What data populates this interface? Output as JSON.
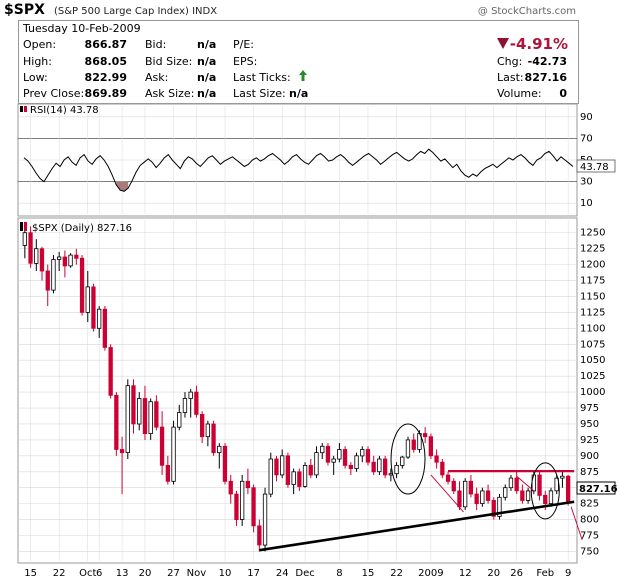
{
  "header": {
    "symbol": "$SPX",
    "name": "(S&P 500 Large Cap Index) INDX",
    "brand": "@ StockCharts.com"
  },
  "quote": {
    "date": "Tuesday 10-Feb-2009",
    "open_label": "Open:",
    "open": "866.87",
    "high_label": "High:",
    "high": "868.05",
    "low_label": "Low:",
    "low": "822.99",
    "prev_label": "Prev Close:",
    "prev": "869.89",
    "bid_label": "Bid:",
    "bid": "n/a",
    "bidsize_label": "Bid Size:",
    "bidsize": "n/a",
    "ask_label": "Ask:",
    "ask": "n/a",
    "asksize_label": "Ask Size:",
    "asksize": "n/a",
    "pe_label": "P/E:",
    "eps_label": "EPS:",
    "lastticks_label": "Last Ticks:",
    "lastsize_label": "Last Size:",
    "lastsize": "n/a",
    "pct_change": "-4.91%",
    "chg_label": "Chg:",
    "chg": "-42.73",
    "last_label": "Last:",
    "last": "827.16",
    "volume_label": "Volume:",
    "volume": "0"
  },
  "chart_data": [
    {
      "type": "line",
      "title": "RSI(14) 43.78",
      "current": 43.78,
      "current_label": "43.78",
      "ylim": [
        0,
        100
      ],
      "yticks": [
        90,
        70,
        50,
        30,
        10
      ],
      "ytick_labels": [
        "90",
        "70",
        "50",
        "30",
        "10"
      ],
      "overbought": 70,
      "oversold": 30,
      "values": [
        52,
        49,
        44,
        38,
        33,
        30,
        36,
        42,
        47,
        44,
        50,
        53,
        48,
        45,
        52,
        55,
        49,
        46,
        51,
        54,
        50,
        44,
        36,
        27,
        22,
        21,
        24,
        31,
        39,
        45,
        48,
        51,
        48,
        43,
        47,
        52,
        55,
        50,
        46,
        42,
        49,
        53,
        51,
        47,
        44,
        48,
        52,
        54,
        50,
        46,
        49,
        51,
        53,
        50,
        47,
        44,
        46,
        50,
        52,
        49,
        51,
        54,
        56,
        53,
        50,
        46,
        49,
        53,
        55,
        51,
        48,
        46,
        50,
        54,
        56,
        53,
        49,
        50,
        53,
        55,
        52,
        48,
        45,
        48,
        51,
        54,
        56,
        53,
        50,
        46,
        49,
        52,
        55,
        57,
        54,
        51,
        49,
        51,
        55,
        58,
        56,
        60,
        57,
        53,
        49,
        51,
        47,
        43,
        46,
        40,
        36,
        34,
        37,
        35,
        39,
        42,
        44,
        46,
        43,
        46,
        49,
        52,
        50,
        53,
        55,
        52,
        48,
        45,
        50,
        52,
        56,
        58,
        54,
        49,
        53,
        50,
        47,
        44
      ]
    },
    {
      "type": "candlestick",
      "title": "$SPX (Daily) 827.16",
      "last": 827.16,
      "last_label": "827.16",
      "ylim": [
        735,
        1270
      ],
      "yticks": [
        1250,
        1225,
        1200,
        1175,
        1150,
        1125,
        1100,
        1075,
        1050,
        1025,
        1000,
        975,
        950,
        925,
        900,
        875,
        850,
        825,
        800,
        775,
        750
      ],
      "ytick_labels": [
        "1250",
        "1225",
        "1200",
        "1175",
        "1150",
        "1125",
        "1100",
        "1075",
        "1050",
        "1025",
        "1000",
        "975",
        "950",
        "925",
        "900",
        "875",
        "850",
        "825",
        "800",
        "775",
        "750"
      ],
      "xtick_labels": [
        "15",
        "22",
        "Oct",
        "6",
        "13",
        "20",
        "27",
        "Nov",
        "10",
        "17",
        "24",
        "Dec",
        "8",
        "15",
        "22",
        "2009",
        "12",
        "20",
        "26",
        "Feb",
        "9"
      ],
      "xtick_index": [
        1,
        6,
        11,
        13,
        17,
        21,
        26,
        30,
        35,
        40,
        45,
        49,
        55,
        60,
        65,
        71,
        77,
        82,
        86,
        91,
        95
      ],
      "candles": [
        [
          1230,
          1255,
          1210,
          1250
        ],
        [
          1250,
          1260,
          1195,
          1202
        ],
        [
          1202,
          1240,
          1190,
          1225
        ],
        [
          1225,
          1228,
          1175,
          1190
        ],
        [
          1190,
          1200,
          1135,
          1160
        ],
        [
          1160,
          1215,
          1155,
          1208
        ],
        [
          1208,
          1220,
          1190,
          1212
        ],
        [
          1212,
          1222,
          1180,
          1198
        ],
        [
          1198,
          1218,
          1195,
          1215
        ],
        [
          1215,
          1225,
          1200,
          1210
        ],
        [
          1210,
          1215,
          1120,
          1125
        ],
        [
          1125,
          1190,
          1110,
          1165
        ],
        [
          1165,
          1170,
          1095,
          1100
        ],
        [
          1100,
          1135,
          1085,
          1130
        ],
        [
          1130,
          1135,
          1065,
          1070
        ],
        [
          1070,
          1075,
          990,
          995
        ],
        [
          995,
          1000,
          900,
          910
        ],
        [
          910,
          930,
          840,
          905
        ],
        [
          905,
          1020,
          895,
          1010
        ],
        [
          1010,
          1020,
          935,
          950
        ],
        [
          950,
          1000,
          940,
          990
        ],
        [
          990,
          1010,
          925,
          935
        ],
        [
          935,
          990,
          925,
          985
        ],
        [
          985,
          995,
          940,
          945
        ],
        [
          945,
          970,
          870,
          885
        ],
        [
          885,
          900,
          855,
          860
        ],
        [
          860,
          955,
          855,
          945
        ],
        [
          945,
          980,
          940,
          968
        ],
        [
          968,
          1000,
          960,
          990
        ],
        [
          990,
          1005,
          960,
          1000
        ],
        [
          1000,
          1010,
          960,
          965
        ],
        [
          965,
          970,
          920,
          930
        ],
        [
          930,
          955,
          915,
          950
        ],
        [
          950,
          955,
          900,
          905
        ],
        [
          905,
          920,
          880,
          915
        ],
        [
          915,
          920,
          855,
          860
        ],
        [
          860,
          870,
          825,
          840
        ],
        [
          840,
          845,
          790,
          800
        ],
        [
          800,
          870,
          790,
          860
        ],
        [
          860,
          880,
          840,
          850
        ],
        [
          850,
          855,
          780,
          790
        ],
        [
          790,
          800,
          750,
          760
        ],
        [
          760,
          850,
          750,
          840
        ],
        [
          840,
          905,
          835,
          895
        ],
        [
          895,
          900,
          860,
          870
        ],
        [
          870,
          910,
          865,
          900
        ],
        [
          900,
          905,
          850,
          855
        ],
        [
          855,
          880,
          840,
          875
        ],
        [
          875,
          880,
          845,
          852
        ],
        [
          852,
          890,
          850,
          885
        ],
        [
          885,
          895,
          865,
          870
        ],
        [
          870,
          915,
          865,
          905
        ],
        [
          905,
          920,
          895,
          915
        ],
        [
          915,
          920,
          885,
          890
        ],
        [
          890,
          900,
          870,
          895
        ],
        [
          895,
          920,
          890,
          910
        ],
        [
          910,
          915,
          880,
          885
        ],
        [
          885,
          890,
          870,
          880
        ],
        [
          880,
          905,
          875,
          900
        ],
        [
          900,
          915,
          890,
          910
        ],
        [
          910,
          915,
          885,
          890
        ],
        [
          890,
          900,
          870,
          875
        ],
        [
          875,
          900,
          870,
          895
        ],
        [
          895,
          900,
          865,
          870
        ],
        [
          870,
          880,
          860,
          872
        ],
        [
          872,
          890,
          865,
          885
        ],
        [
          885,
          900,
          880,
          898
        ],
        [
          898,
          930,
          895,
          925
        ],
        [
          925,
          935,
          905,
          910
        ],
        [
          910,
          940,
          905,
          935
        ],
        [
          935,
          945,
          920,
          930
        ],
        [
          930,
          935,
          895,
          900
        ],
        [
          900,
          910,
          880,
          890
        ],
        [
          890,
          895,
          865,
          870
        ],
        [
          870,
          875,
          855,
          860
        ],
        [
          860,
          865,
          840,
          845
        ],
        [
          845,
          860,
          815,
          820
        ],
        [
          820,
          865,
          815,
          860
        ],
        [
          860,
          870,
          835,
          840
        ],
        [
          840,
          850,
          815,
          825
        ],
        [
          825,
          850,
          820,
          845
        ],
        [
          845,
          855,
          825,
          830
        ],
        [
          830,
          835,
          800,
          805
        ],
        [
          805,
          840,
          800,
          835
        ],
        [
          835,
          855,
          830,
          850
        ],
        [
          850,
          870,
          845,
          865
        ],
        [
          865,
          875,
          840,
          845
        ],
        [
          845,
          855,
          825,
          830
        ],
        [
          830,
          850,
          825,
          845
        ],
        [
          845,
          875,
          840,
          870
        ],
        [
          870,
          875,
          830,
          838
        ],
        [
          838,
          845,
          815,
          825
        ],
        [
          825,
          850,
          820,
          845
        ],
        [
          845,
          870,
          840,
          865
        ],
        [
          865,
          875,
          850,
          868
        ],
        [
          868,
          870,
          822,
          827
        ]
      ],
      "annotations": {
        "support_trendline": "black",
        "resistance_line": "red",
        "ovals": 2,
        "direction_arrows": 3
      }
    }
  ],
  "colors": {
    "up": "#ffffff",
    "down": "#cc0033",
    "outline": "#000000",
    "rsi_line": "#000000",
    "rsi_oversold_fill": "#a77b7b",
    "grid": "#d8d8d8",
    "resistance": "#cc0033",
    "last_pct": "#b0123a"
  }
}
